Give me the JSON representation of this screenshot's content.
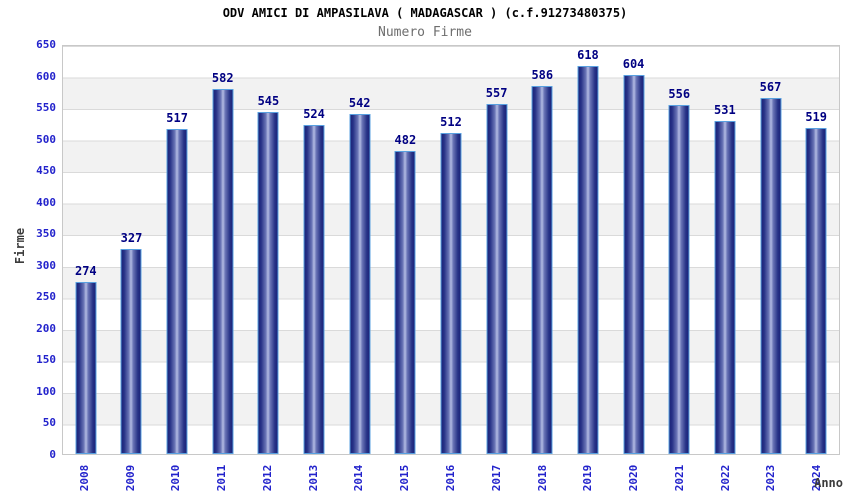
{
  "header": {
    "title": "ODV AMICI DI AMPASILAVA ( MADAGASCAR ) (c.f.91273480375)",
    "subtitle": "Numero Firme"
  },
  "axes": {
    "y_title": "Firme",
    "x_title": "Anno",
    "y_ticks": [
      650,
      600,
      550,
      500,
      450,
      400,
      350,
      300,
      250,
      200,
      150,
      100,
      50,
      0
    ]
  },
  "chart_data": {
    "type": "bar",
    "title": "Numero Firme",
    "xlabel": "Anno",
    "ylabel": "Firme",
    "ylim": [
      0,
      650
    ],
    "grid": "horizontal-bands-every-50",
    "legend": "none",
    "categories": [
      "2008",
      "2009",
      "2010",
      "2011",
      "2012",
      "2013",
      "2014",
      "2015",
      "2016",
      "2017",
      "2018",
      "2019",
      "2020",
      "2021",
      "2022",
      "2023",
      "2024"
    ],
    "values": [
      274,
      327,
      517,
      582,
      545,
      524,
      542,
      482,
      512,
      557,
      586,
      618,
      604,
      556,
      531,
      567,
      519
    ]
  },
  "colors": {
    "axis_label_blue": "#2323cc",
    "value_label_navy": "#000082",
    "title_black": "#000000",
    "subtitle_gray": "#6e6e6e",
    "axis_title_gray": "#3c3c3c",
    "band_gray": "#f2f2f2",
    "gridline_gray": "#dadada",
    "plot_border_gray": "#c8c8c8",
    "bar_edge_navy": "#1b2478",
    "bar_mid_blue": "#6974b5",
    "bar_center_light": "#b3bbe3",
    "bar_border_lightblue": "#58a0e0"
  }
}
